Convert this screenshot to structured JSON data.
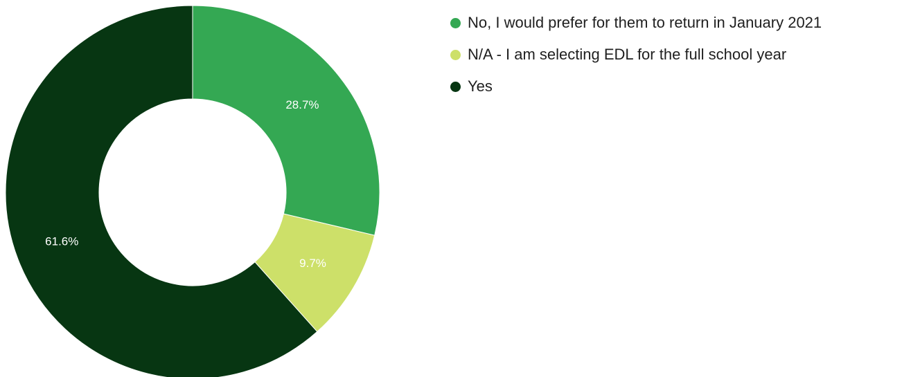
{
  "chart_data": {
    "type": "pie",
    "variant": "donut",
    "slices": [
      {
        "label": "No, I would prefer for them to return in January 2021",
        "value": 28.7,
        "display": "28.7%",
        "color": "#34a853"
      },
      {
        "label": "N/A - I am selecting EDL for the full school year",
        "value": 9.7,
        "display": "9.7%",
        "color": "#cde069"
      },
      {
        "label": "Yes",
        "value": 61.6,
        "display": "61.6%",
        "color": "#073612"
      }
    ],
    "legend_position": "top-right",
    "start_angle": "top",
    "direction": "clockwise"
  }
}
